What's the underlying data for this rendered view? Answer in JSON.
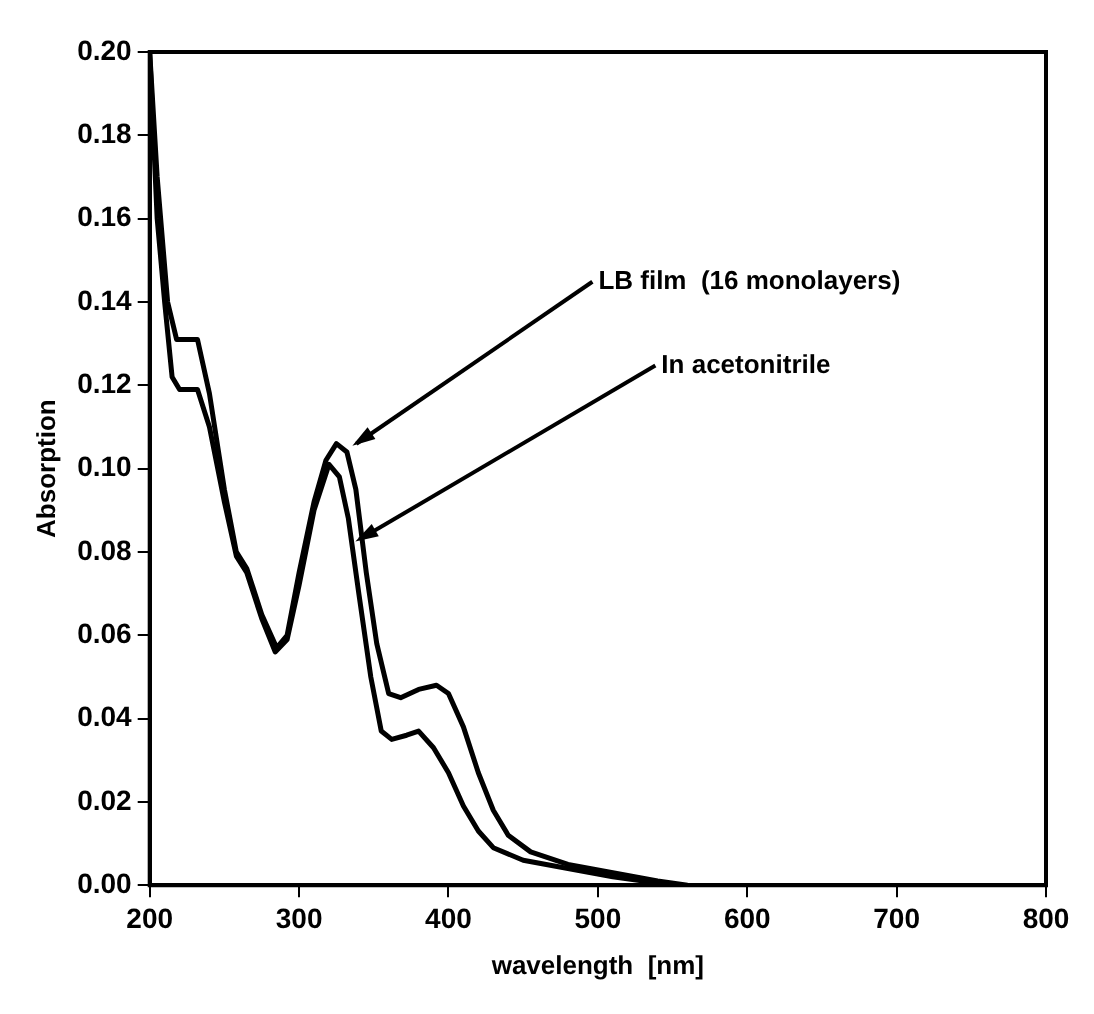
{
  "chart_data": {
    "type": "line",
    "xlabel": "wavelength  [nm]",
    "ylabel": "Absorption",
    "xlim": [
      200,
      800
    ],
    "xticks": [
      200,
      300,
      400,
      500,
      600,
      700,
      800
    ],
    "ylim": [
      0,
      0.2
    ],
    "yticks": [
      {
        "value": 0,
        "label": "0.00"
      },
      {
        "value": 0.02,
        "label": "0.02"
      },
      {
        "value": 0.04,
        "label": "0.04"
      },
      {
        "value": 0.06,
        "label": "0.06"
      },
      {
        "value": 0.08,
        "label": "0.08"
      },
      {
        "value": 0.1,
        "label": "0.10"
      },
      {
        "value": 0.12,
        "label": "0.12"
      },
      {
        "value": 0.14,
        "label": "0.14"
      },
      {
        "value": 0.16,
        "label": "0.16"
      },
      {
        "value": 0.18,
        "label": "0.18"
      },
      {
        "value": 0.2,
        "label": "0.20"
      }
    ],
    "grid": false,
    "legend": false,
    "marker": "none",
    "line_style": "solid",
    "series": [
      {
        "color": "#000000",
        "x": [
          200,
          205,
          212,
          218,
          232,
          240,
          250,
          258,
          265,
          275,
          285,
          292,
          300,
          310,
          318,
          325,
          332,
          338,
          345,
          352,
          360,
          368,
          380,
          392,
          400,
          410,
          420,
          430,
          440,
          455,
          480,
          510,
          540,
          560
        ],
        "values": [
          0.2,
          0.17,
          0.14,
          0.131,
          0.131,
          0.118,
          0.095,
          0.08,
          0.076,
          0.065,
          0.057,
          0.06,
          0.075,
          0.092,
          0.102,
          0.106,
          0.104,
          0.095,
          0.075,
          0.058,
          0.046,
          0.045,
          0.047,
          0.048,
          0.046,
          0.038,
          0.027,
          0.018,
          0.012,
          0.008,
          0.005,
          0.003,
          0.001,
          0
        ]
      },
      {
        "color": "#000000",
        "x": [
          200,
          205,
          210,
          215,
          220,
          232,
          240,
          250,
          258,
          265,
          275,
          284,
          292,
          300,
          310,
          320,
          327,
          333,
          340,
          348,
          355,
          362,
          372,
          380,
          390,
          400,
          410,
          420,
          430,
          450,
          480,
          510,
          540,
          555
        ],
        "values": [
          0.2,
          0.16,
          0.14,
          0.122,
          0.119,
          0.119,
          0.11,
          0.092,
          0.079,
          0.075,
          0.064,
          0.056,
          0.059,
          0.072,
          0.09,
          0.101,
          0.098,
          0.088,
          0.07,
          0.05,
          0.037,
          0.035,
          0.036,
          0.037,
          0.033,
          0.027,
          0.019,
          0.013,
          0.009,
          0.006,
          0.004,
          0.002,
          0.0005,
          0
        ]
      }
    ],
    "annotations": [
      {
        "text": "LB film  (16 monolayers)",
        "x": 333,
        "y": 0.105
      },
      {
        "text": "In acetonitrile",
        "x": 335,
        "y": 0.082
      }
    ]
  }
}
